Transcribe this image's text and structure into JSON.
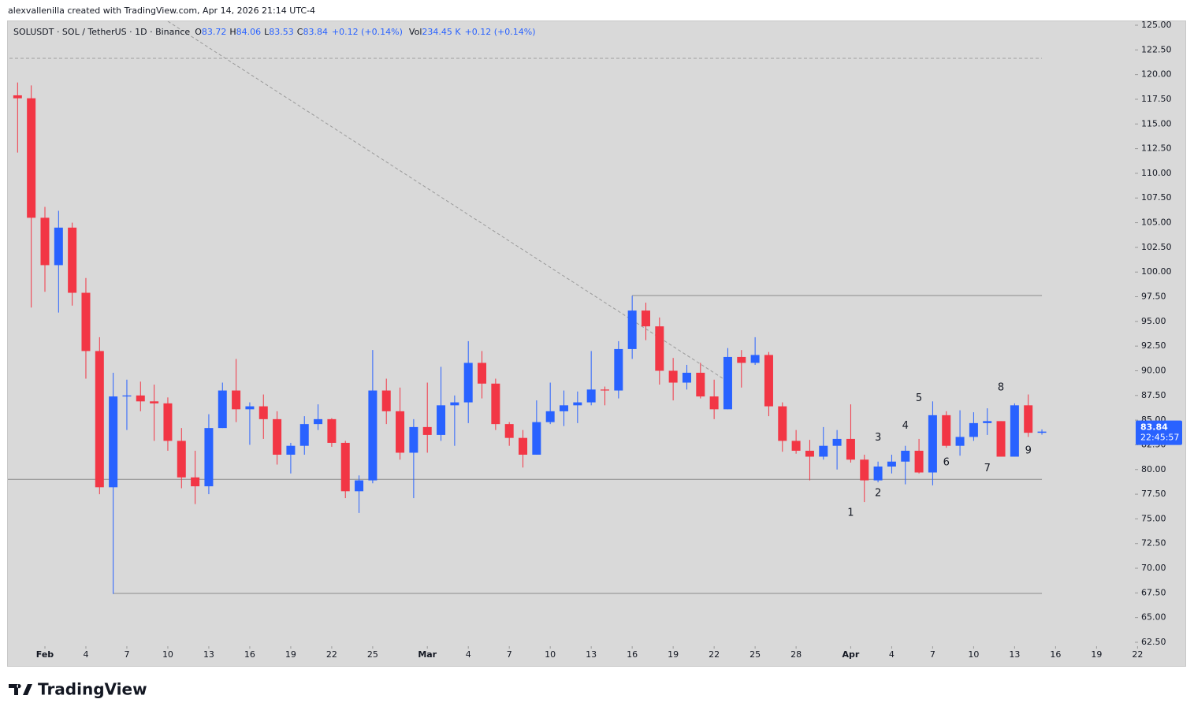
{
  "header": "alexvallenilla created with TradingView.com, Apr 14, 2026 21:14 UTC-4",
  "footer": "TradingView",
  "chart_data": {
    "type": "candlestick",
    "legend": {
      "symbol": "SOLUSDT · SOL / TetherUS · 1D · Binance",
      "items": [
        {
          "label": "O",
          "value": 83.72
        },
        {
          "label": "H",
          "value": 84.06
        },
        {
          "label": "L",
          "value": 83.53
        },
        {
          "label": "C",
          "value": 83.84
        }
      ],
      "change": "+0.12 (+0.14%)",
      "volume_label": "Vol",
      "volume": "234.45 K",
      "volume_change": "+0.12 (+0.14%)"
    },
    "up_color": "#2962ff",
    "down_color": "#f23645",
    "grid": false,
    "x": [
      "2026-01-30",
      "2026-01-31",
      "2026-02-01",
      "2026-02-02",
      "2026-02-03",
      "2026-02-04",
      "2026-02-05",
      "2026-02-06",
      "2026-02-07",
      "2026-02-08",
      "2026-02-09",
      "2026-02-10",
      "2026-02-11",
      "2026-02-12",
      "2026-02-13",
      "2026-02-14",
      "2026-02-15",
      "2026-02-16",
      "2026-02-17",
      "2026-02-18",
      "2026-02-19",
      "2026-02-20",
      "2026-02-21",
      "2026-02-22",
      "2026-02-23",
      "2026-02-24",
      "2026-02-25",
      "2026-02-26",
      "2026-02-27",
      "2026-02-28",
      "2026-03-01",
      "2026-03-02",
      "2026-03-03",
      "2026-03-04",
      "2026-03-05",
      "2026-03-06",
      "2026-03-07",
      "2026-03-08",
      "2026-03-09",
      "2026-03-10",
      "2026-03-11",
      "2026-03-12",
      "2026-03-13",
      "2026-03-14",
      "2026-03-15",
      "2026-03-16",
      "2026-03-17",
      "2026-03-18",
      "2026-03-19",
      "2026-03-20",
      "2026-03-21",
      "2026-03-22",
      "2026-03-23",
      "2026-03-24",
      "2026-03-25",
      "2026-03-26",
      "2026-03-27",
      "2026-03-28",
      "2026-03-29",
      "2026-03-30",
      "2026-03-31",
      "2026-04-01",
      "2026-04-02",
      "2026-04-03",
      "2026-04-04",
      "2026-04-05",
      "2026-04-06",
      "2026-04-07",
      "2026-04-08",
      "2026-04-09",
      "2026-04-10",
      "2026-04-11",
      "2026-04-12",
      "2026-04-13",
      "2026-04-14",
      "2026-04-15"
    ],
    "open": [
      117.9,
      117.6,
      105.5,
      100.7,
      104.5,
      97.9,
      92.0,
      78.2,
      87.4,
      87.5,
      86.9,
      86.7,
      82.9,
      79.2,
      78.3,
      84.2,
      88.0,
      86.1,
      86.4,
      85.1,
      81.5,
      82.4,
      84.6,
      85.1,
      82.7,
      77.8,
      78.9,
      88.0,
      85.9,
      81.7,
      84.3,
      83.5,
      86.5,
      86.8,
      90.8,
      88.7,
      84.6,
      83.2,
      81.5,
      84.8,
      85.9,
      86.5,
      86.8,
      88.1,
      88.0,
      92.2,
      96.1,
      94.5,
      90.0,
      88.8,
      89.8,
      87.4,
      86.1,
      91.4,
      90.8,
      91.6,
      86.4,
      82.9,
      81.9,
      81.3,
      82.4,
      83.1,
      81.0,
      78.9,
      80.3,
      80.8,
      81.9,
      79.7,
      85.5,
      82.4,
      83.3,
      84.7,
      84.9,
      81.3,
      86.5,
      83.72
    ],
    "high": [
      119.2,
      118.9,
      106.6,
      106.2,
      105.0,
      99.4,
      93.4,
      89.8,
      89.1,
      88.9,
      88.6,
      87.3,
      84.2,
      81.9,
      85.6,
      88.8,
      91.2,
      86.8,
      87.6,
      85.9,
      82.7,
      85.4,
      86.6,
      85.2,
      82.9,
      79.4,
      92.1,
      89.2,
      88.3,
      85.1,
      88.8,
      90.4,
      87.5,
      93.0,
      92.0,
      89.2,
      84.8,
      84.0,
      87.0,
      88.8,
      88.0,
      87.9,
      92.0,
      88.4,
      93.0,
      97.6,
      96.9,
      95.4,
      91.3,
      90.6,
      90.8,
      89.1,
      92.3,
      92.1,
      93.4,
      91.9,
      86.8,
      84.0,
      83.0,
      84.3,
      84.0,
      86.6,
      81.5,
      80.8,
      81.5,
      82.4,
      83.1,
      86.9,
      85.9,
      86.0,
      85.8,
      86.2,
      84.9,
      86.7,
      87.6,
      84.06
    ],
    "low": [
      112.1,
      96.4,
      98.0,
      95.9,
      96.6,
      89.2,
      77.5,
      67.4,
      84.0,
      85.9,
      82.9,
      81.9,
      78.1,
      76.5,
      77.5,
      84.2,
      84.8,
      82.5,
      83.1,
      80.5,
      79.6,
      81.5,
      84.0,
      82.3,
      77.1,
      75.6,
      78.6,
      84.6,
      81.0,
      77.1,
      81.7,
      82.9,
      82.4,
      84.7,
      87.2,
      84.0,
      82.4,
      80.2,
      81.5,
      84.6,
      84.4,
      84.7,
      86.5,
      86.5,
      87.2,
      91.2,
      93.1,
      88.6,
      87.0,
      88.1,
      87.2,
      85.1,
      86.1,
      88.3,
      90.6,
      85.4,
      81.8,
      81.6,
      78.9,
      81.0,
      80.0,
      80.7,
      76.7,
      78.7,
      79.6,
      78.5,
      79.6,
      78.4,
      82.2,
      81.4,
      82.9,
      83.5,
      81.3,
      81.3,
      83.3,
      83.53
    ],
    "close": [
      117.6,
      105.5,
      100.7,
      104.5,
      97.9,
      92.0,
      78.2,
      87.4,
      87.5,
      86.9,
      86.7,
      82.9,
      79.2,
      78.3,
      84.2,
      88.0,
      86.1,
      86.4,
      85.1,
      81.5,
      82.4,
      84.6,
      85.1,
      82.7,
      77.8,
      78.9,
      88.0,
      85.9,
      81.7,
      84.3,
      83.5,
      86.5,
      86.8,
      90.8,
      88.7,
      84.6,
      83.2,
      81.5,
      84.8,
      85.9,
      86.5,
      86.8,
      88.1,
      88.0,
      92.2,
      96.1,
      94.5,
      90.0,
      88.8,
      89.8,
      87.4,
      86.1,
      91.4,
      90.8,
      91.6,
      86.4,
      82.9,
      81.9,
      81.3,
      82.4,
      83.1,
      81.0,
      78.9,
      80.3,
      80.8,
      81.9,
      79.7,
      85.5,
      82.4,
      83.3,
      84.7,
      84.9,
      81.3,
      86.5,
      83.72,
      83.84
    ],
    "xlim": [
      "2026-01-29",
      "2026-04-24"
    ],
    "xticks": [
      {
        "value": "2026-02-01",
        "label": "Feb"
      },
      {
        "value": "2026-02-04",
        "label": "4"
      },
      {
        "value": "2026-02-07",
        "label": "7"
      },
      {
        "value": "2026-02-10",
        "label": "10"
      },
      {
        "value": "2026-02-13",
        "label": "13"
      },
      {
        "value": "2026-02-16",
        "label": "16"
      },
      {
        "value": "2026-02-19",
        "label": "19"
      },
      {
        "value": "2026-02-22",
        "label": "22"
      },
      {
        "value": "2026-02-25",
        "label": "25"
      },
      {
        "value": "2026-03-01",
        "label": "Mar"
      },
      {
        "value": "2026-03-04",
        "label": "4"
      },
      {
        "value": "2026-03-07",
        "label": "7"
      },
      {
        "value": "2026-03-10",
        "label": "10"
      },
      {
        "value": "2026-03-13",
        "label": "13"
      },
      {
        "value": "2026-03-16",
        "label": "16"
      },
      {
        "value": "2026-03-19",
        "label": "19"
      },
      {
        "value": "2026-03-22",
        "label": "22"
      },
      {
        "value": "2026-03-25",
        "label": "25"
      },
      {
        "value": "2026-03-28",
        "label": "28"
      },
      {
        "value": "2026-04-01",
        "label": "Apr"
      },
      {
        "value": "2026-04-04",
        "label": "4"
      },
      {
        "value": "2026-04-07",
        "label": "7"
      },
      {
        "value": "2026-04-10",
        "label": "10"
      },
      {
        "value": "2026-04-13",
        "label": "13"
      },
      {
        "value": "2026-04-16",
        "label": "16"
      },
      {
        "value": "2026-04-19",
        "label": "19"
      },
      {
        "value": "2026-04-22",
        "label": "22"
      }
    ],
    "ylim": [
      62.1,
      125.4
    ],
    "yticks": [
      {
        "value": 62.5,
        "label": "62.50"
      },
      {
        "value": 65,
        "label": "65.00"
      },
      {
        "value": 67.5,
        "label": "67.50"
      },
      {
        "value": 70,
        "label": "70.00"
      },
      {
        "value": 72.5,
        "label": "72.50"
      },
      {
        "value": 75,
        "label": "75.00"
      },
      {
        "value": 77.5,
        "label": "77.50"
      },
      {
        "value": 80,
        "label": "80.00"
      },
      {
        "value": 82.5,
        "label": "82.50"
      },
      {
        "value": 85,
        "label": "85.00"
      },
      {
        "value": 87.5,
        "label": "87.50"
      },
      {
        "value": 90,
        "label": "90.00"
      },
      {
        "value": 92.5,
        "label": "92.50"
      },
      {
        "value": 95,
        "label": "95.00"
      },
      {
        "value": 97.5,
        "label": "97.50"
      },
      {
        "value": 100,
        "label": "100.00"
      },
      {
        "value": 102.5,
        "label": "102.50"
      },
      {
        "value": 105,
        "label": "105.00"
      },
      {
        "value": 107.5,
        "label": "107.50"
      },
      {
        "value": 110,
        "label": "110.00"
      },
      {
        "value": 112.5,
        "label": "112.50"
      },
      {
        "value": 115,
        "label": "115.00"
      },
      {
        "value": 117.5,
        "label": "117.50"
      },
      {
        "value": 120,
        "label": "120.00"
      },
      {
        "value": 122.5,
        "label": "122.50"
      },
      {
        "value": 125,
        "label": "125.00"
      }
    ],
    "levels": [
      {
        "value": 121.65,
        "from": "2026-01-29",
        "to": "2026-04-15",
        "dashed": true
      },
      {
        "value": 97.62,
        "from": "2026-03-16",
        "to": "2026-04-15",
        "dashed": false
      },
      {
        "value": 79.0,
        "from": "2026-01-29",
        "to": "2026-04-15",
        "dashed": false
      },
      {
        "value": 67.45,
        "from": "2026-02-06",
        "to": "2026-04-15",
        "dashed": false
      }
    ],
    "trendline": {
      "from": {
        "x": "2026-02-10",
        "y": 125.4
      },
      "to": {
        "x": "2026-03-23",
        "y": 88.9
      }
    },
    "annotations": [
      {
        "text": "1",
        "x": "2026-04-01",
        "y": 75.6
      },
      {
        "text": "2",
        "x": "2026-04-03",
        "y": 77.6
      },
      {
        "text": "3",
        "x": "2026-04-03",
        "y": 83.2
      },
      {
        "text": "4",
        "x": "2026-04-05",
        "y": 84.4
      },
      {
        "text": "5",
        "x": "2026-04-06",
        "y": 87.2
      },
      {
        "text": "6",
        "x": "2026-04-08",
        "y": 80.7
      },
      {
        "text": "7",
        "x": "2026-04-11",
        "y": 80.1
      },
      {
        "text": "8",
        "x": "2026-04-12",
        "y": 88.3
      },
      {
        "text": "9",
        "x": "2026-04-14",
        "y": 81.9
      }
    ],
    "last_price": {
      "value": 83.84,
      "countdown": "22:45:57"
    }
  }
}
